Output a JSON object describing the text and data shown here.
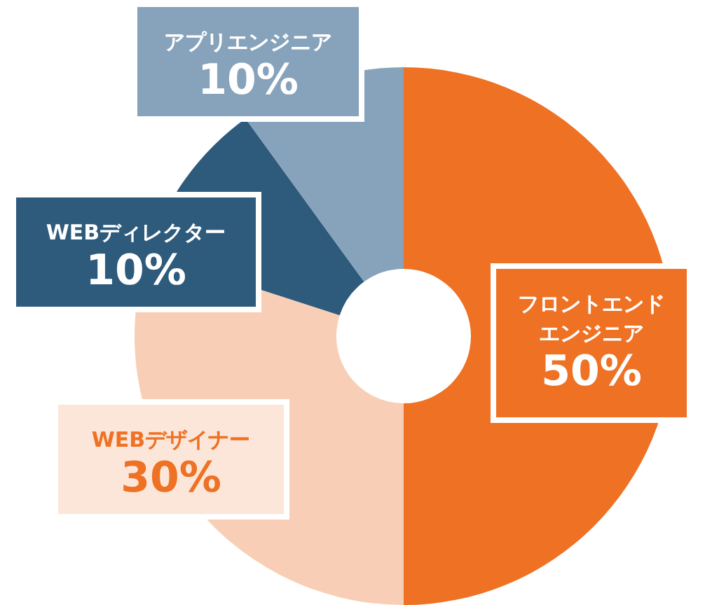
{
  "chart_data": {
    "type": "donut",
    "categories": [
      "フロントエンドエンジニア",
      "WEBデザイナー",
      "WEBディレクター",
      "アプリエンジニア"
    ],
    "values": [
      50,
      30,
      10,
      10
    ],
    "colors": [
      "#ee7124",
      "#f8cfb6",
      "#2e5a7c",
      "#87a3bb"
    ],
    "value_labels": [
      "50%",
      "30%",
      "10%",
      "10%"
    ]
  }
}
